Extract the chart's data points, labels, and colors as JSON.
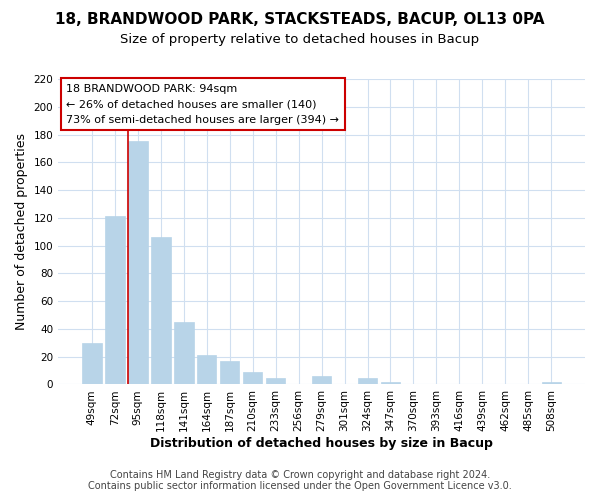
{
  "title": "18, BRANDWOOD PARK, STACKSTEADS, BACUP, OL13 0PA",
  "subtitle": "Size of property relative to detached houses in Bacup",
  "xlabel": "Distribution of detached houses by size in Bacup",
  "ylabel": "Number of detached properties",
  "bar_labels": [
    "49sqm",
    "72sqm",
    "95sqm",
    "118sqm",
    "141sqm",
    "164sqm",
    "187sqm",
    "210sqm",
    "233sqm",
    "256sqm",
    "279sqm",
    "301sqm",
    "324sqm",
    "347sqm",
    "370sqm",
    "393sqm",
    "416sqm",
    "439sqm",
    "462sqm",
    "485sqm",
    "508sqm"
  ],
  "bar_values": [
    30,
    121,
    175,
    106,
    45,
    21,
    17,
    9,
    5,
    0,
    6,
    0,
    5,
    2,
    0,
    0,
    0,
    0,
    0,
    0,
    2
  ],
  "bar_color": "#b8d4e8",
  "vline_bar_index": 2,
  "vline_color": "#cc0000",
  "ylim": [
    0,
    220
  ],
  "yticks": [
    0,
    20,
    40,
    60,
    80,
    100,
    120,
    140,
    160,
    180,
    200,
    220
  ],
  "annotation_text_line1": "18 BRANDWOOD PARK: 94sqm",
  "annotation_text_line2": "← 26% of detached houses are smaller (140)",
  "annotation_text_line3": "73% of semi-detached houses are larger (394) →",
  "footer_line1": "Contains HM Land Registry data © Crown copyright and database right 2024.",
  "footer_line2": "Contains public sector information licensed under the Open Government Licence v3.0.",
  "background_color": "#ffffff",
  "grid_color": "#d0dff0",
  "title_fontsize": 11,
  "subtitle_fontsize": 9.5,
  "axis_label_fontsize": 9,
  "tick_fontsize": 7.5,
  "annotation_fontsize": 8,
  "footer_fontsize": 7
}
